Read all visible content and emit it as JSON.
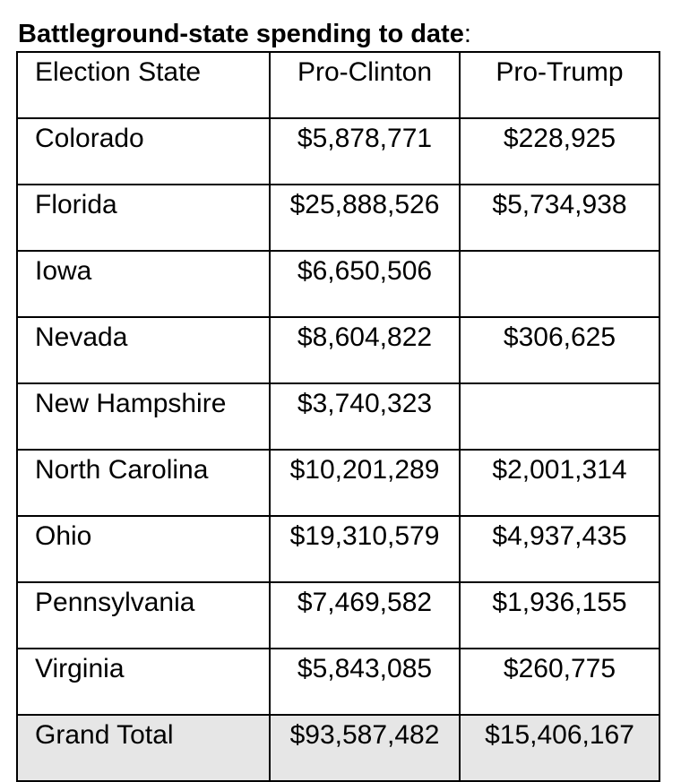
{
  "heading": {
    "title": "Battleground-state spending to date",
    "colon": ":"
  },
  "table": {
    "headers": [
      "Election State",
      "Pro-Clinton",
      "Pro-Trump"
    ],
    "rows": [
      {
        "state": "Colorado",
        "clinton": "$5,878,771",
        "trump": "$228,925"
      },
      {
        "state": "Florida",
        "clinton": "$25,888,526",
        "trump": "$5,734,938"
      },
      {
        "state": "Iowa",
        "clinton": "$6,650,506",
        "trump": ""
      },
      {
        "state": "Nevada",
        "clinton": "$8,604,822",
        "trump": "$306,625"
      },
      {
        "state": "New Hampshire",
        "clinton": "$3,740,323",
        "trump": ""
      },
      {
        "state": "North Carolina",
        "clinton": "$10,201,289",
        "trump": "$2,001,314"
      },
      {
        "state": "Ohio",
        "clinton": "$19,310,579",
        "trump": "$4,937,435"
      },
      {
        "state": "Pennsylvania",
        "clinton": "$7,469,582",
        "trump": "$1,936,155"
      },
      {
        "state": "Virginia",
        "clinton": "$5,843,085",
        "trump": "$260,775"
      }
    ],
    "total": {
      "state": "Grand Total",
      "clinton": "$93,587,482",
      "trump": "$15,406,167"
    }
  },
  "colors": {
    "total_row_background": "#e6e6e6",
    "border": "#000000"
  }
}
